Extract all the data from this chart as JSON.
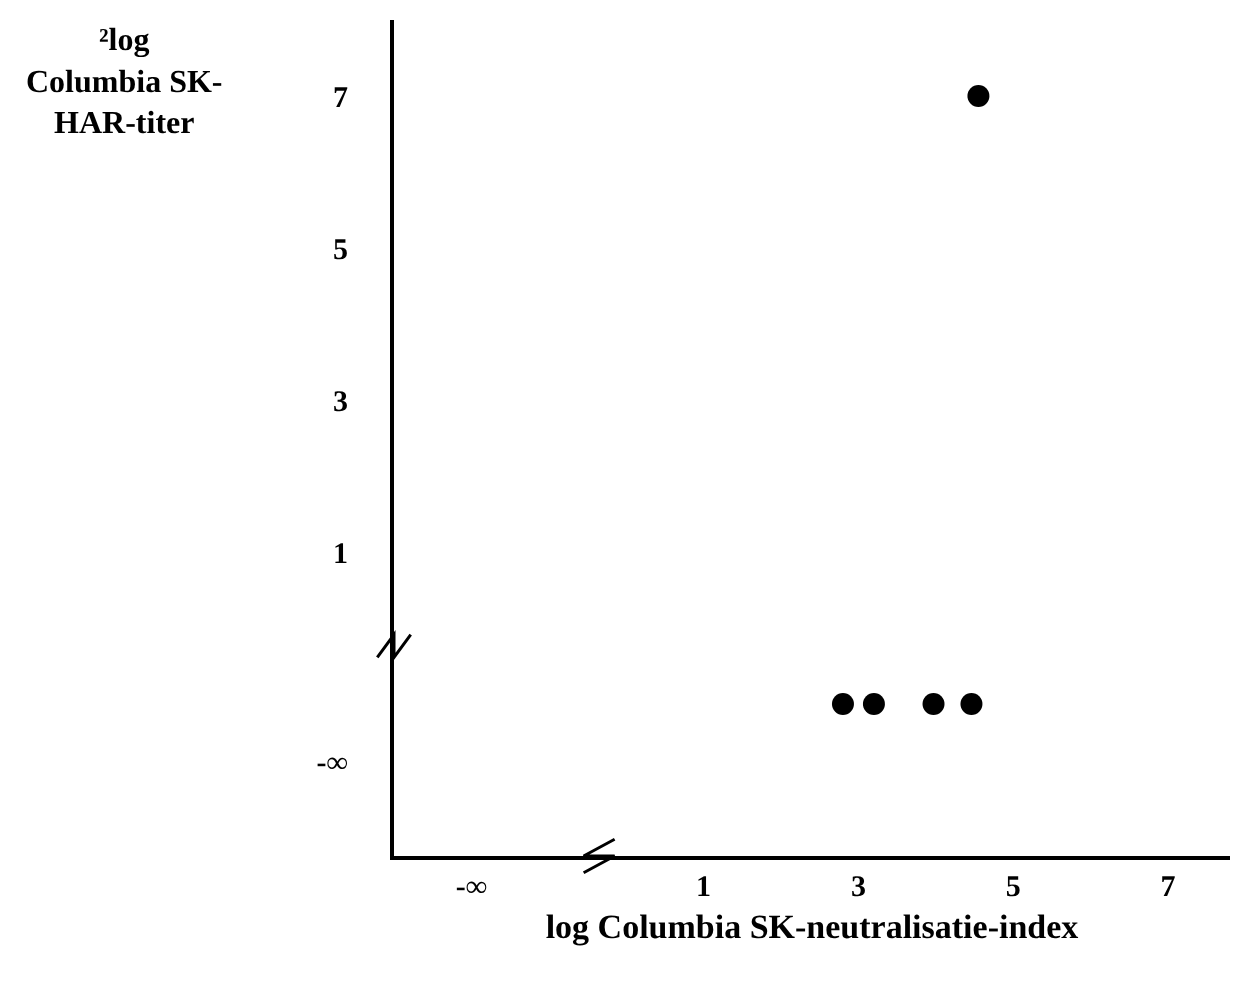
{
  "chart_data": {
    "type": "scatter",
    "xlabel": "log Columbia SK-neutralisatie-index",
    "ylabel": "²log\nColumbia SK-\nHAR-titer",
    "x": [
      4.55,
      2.8,
      3.2,
      3.97,
      4.46
    ],
    "values": [
      7,
      -1,
      -1,
      -1,
      -1
    ],
    "color": "#000000",
    "marker": "circle",
    "xlim": [
      -3,
      7.8
    ],
    "xticks": [
      {
        "value": -2,
        "label": "-∞"
      },
      1,
      3,
      5,
      7
    ],
    "ylim": [
      -3,
      8
    ],
    "yticks": [
      {
        "value": -1.75,
        "label": "-∞"
      },
      1,
      3,
      5,
      7
    ],
    "grid": false
  }
}
